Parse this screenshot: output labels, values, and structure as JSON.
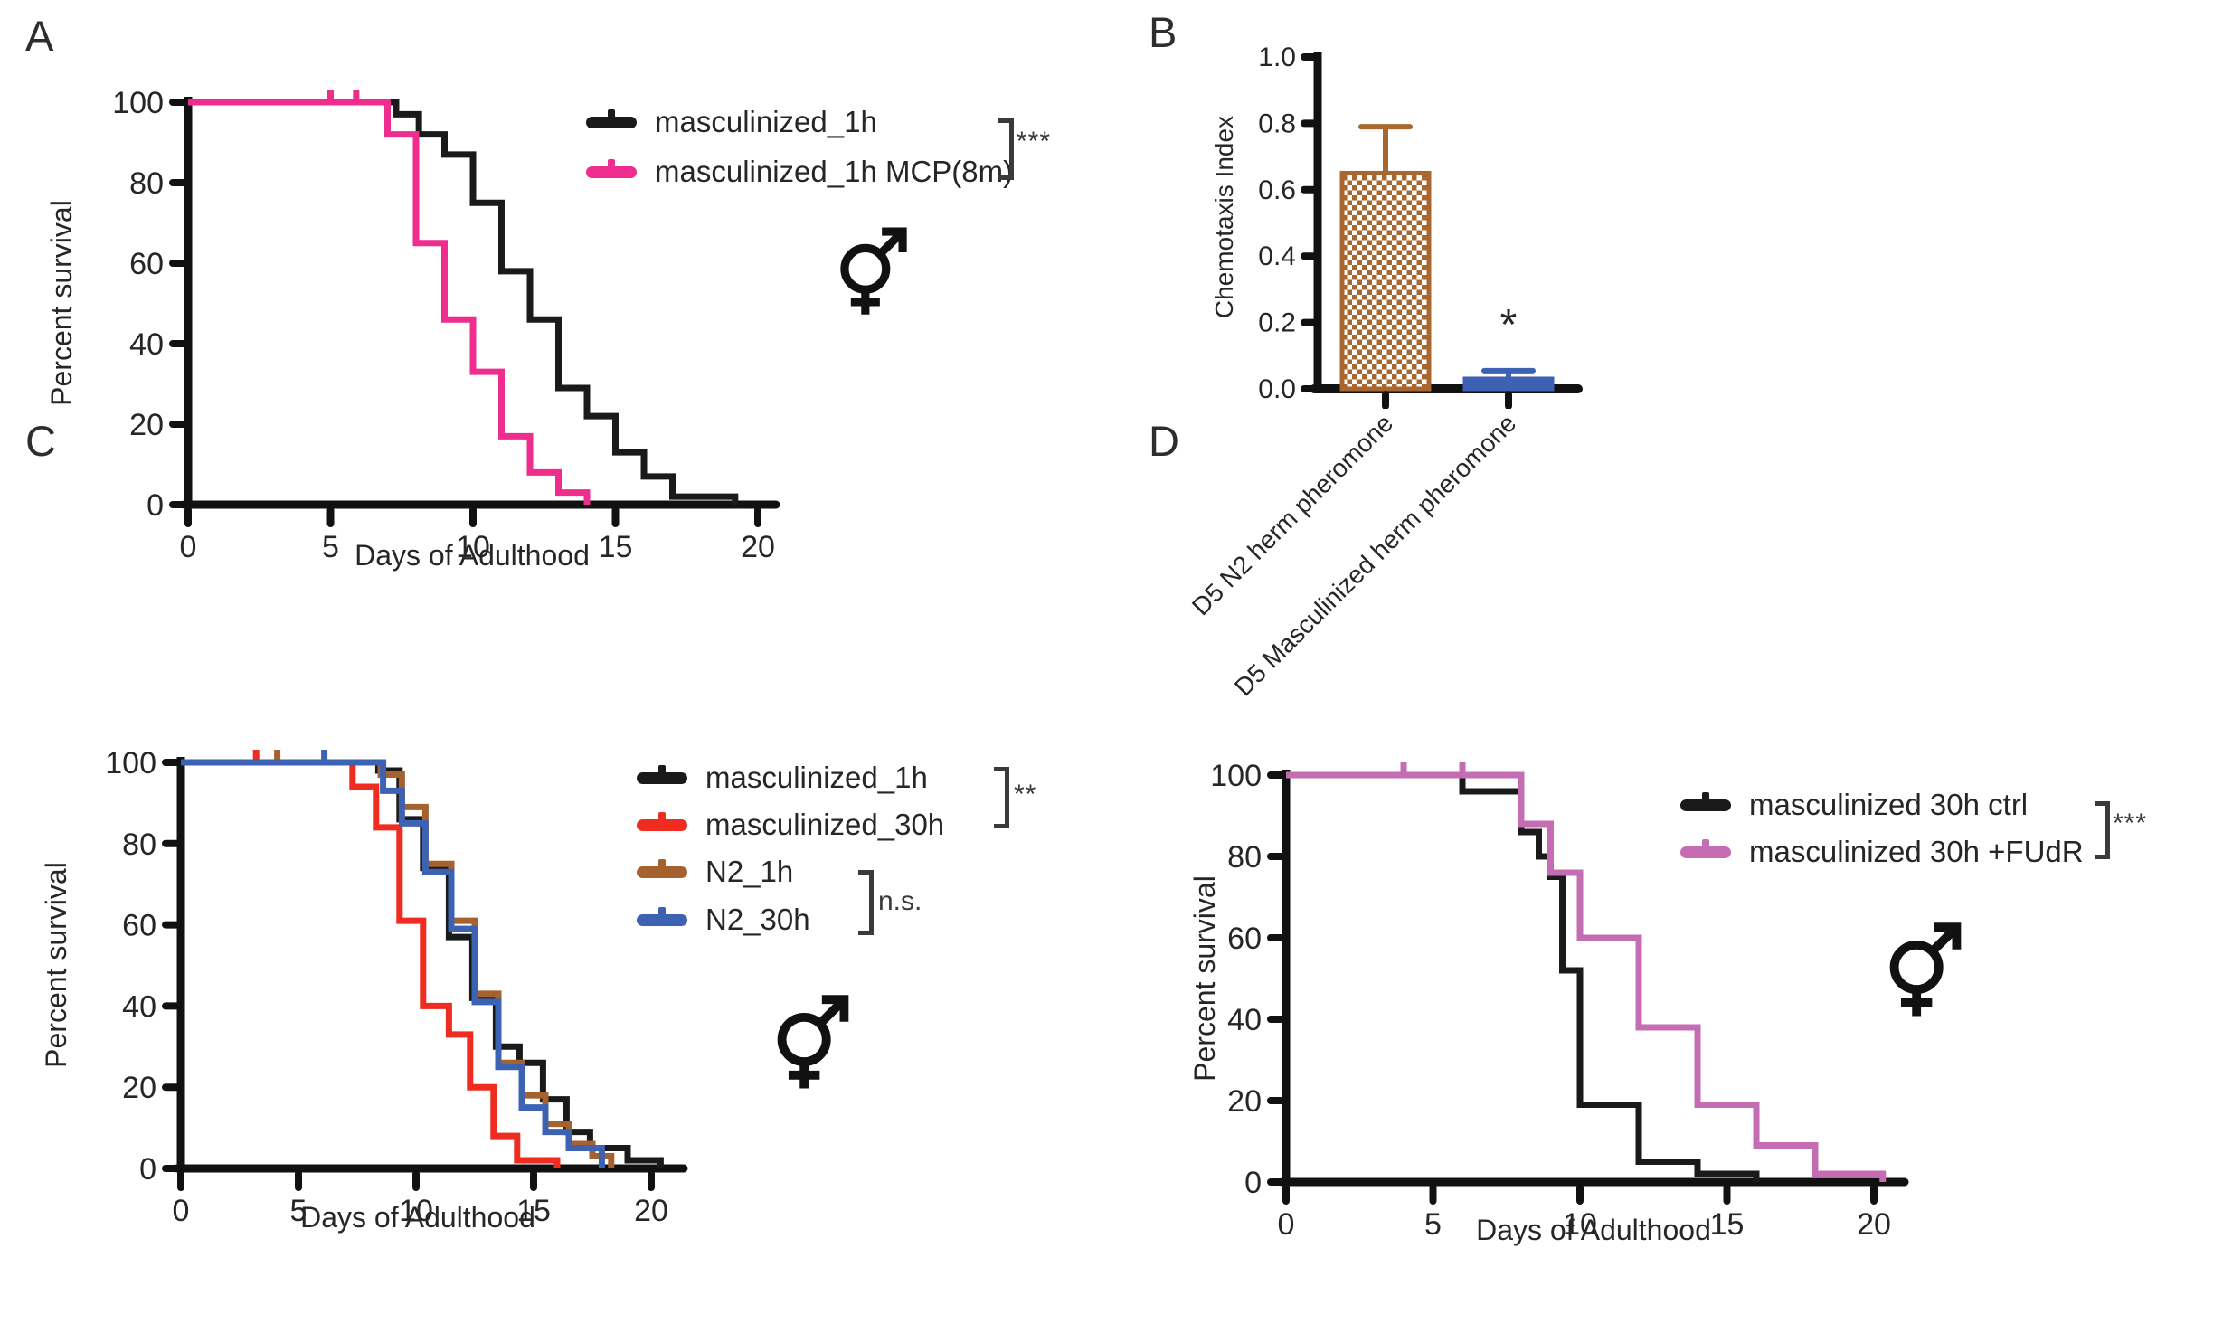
{
  "chart_data": [
    {
      "panel": "A",
      "type": "line",
      "subtype": "kaplan-meier-survival",
      "xlabel": "Days of Adulthood",
      "ylabel": "Percent survival",
      "xlim": [
        0,
        20
      ],
      "ylim": [
        0,
        100
      ],
      "xticks": [
        0,
        5,
        10,
        15,
        20
      ],
      "yticks": [
        0,
        20,
        40,
        60,
        80,
        100
      ],
      "grid": false,
      "legend_position": "upper-right",
      "significance": "***",
      "sex_annotation": "combined male-female (hermaphrodite) symbol",
      "series": [
        {
          "name": "masculinized_1h",
          "color": "#1a1a1a",
          "points": [
            [
              0,
              100
            ],
            [
              7.3,
              97
            ],
            [
              8.1,
              92
            ],
            [
              9,
              87
            ],
            [
              10,
              75
            ],
            [
              11,
              58
            ],
            [
              12,
              46
            ],
            [
              13,
              29
            ],
            [
              14,
              22
            ],
            [
              15,
              13
            ],
            [
              16,
              7
            ],
            [
              17,
              2
            ],
            [
              19.2,
              0
            ]
          ],
          "censor_ticks": []
        },
        {
          "name": "masculinized_1h MCP(8m)",
          "color": "#ee2d8e",
          "points": [
            [
              0,
              100
            ],
            [
              7,
              92
            ],
            [
              8,
              65
            ],
            [
              9,
              46
            ],
            [
              10,
              33
            ],
            [
              11,
              17
            ],
            [
              12,
              8
            ],
            [
              13,
              3
            ],
            [
              14,
              0
            ]
          ],
          "censor_ticks": [
            [
              5,
              100
            ],
            [
              5.9,
              100
            ]
          ]
        }
      ]
    },
    {
      "panel": "B",
      "type": "bar",
      "ylabel": "Chemotaxis Index",
      "ylim": [
        0,
        1.0
      ],
      "yticks": [
        0,
        0.2,
        0.4,
        0.6,
        0.8,
        1.0
      ],
      "ytick_labels": [
        "0.0",
        "0.2",
        "0.4",
        "0.6",
        "0.8",
        "1.0"
      ],
      "categories": [
        "D5 N2 herm pheromone",
        "D5 Masculinized herm pheromone"
      ],
      "values": [
        0.65,
        0.03
      ],
      "error_top": [
        0.79,
        0.055
      ],
      "bar_colors": [
        "#a8672f",
        "#3d62b4"
      ],
      "bar_fill_styles": [
        "checkerboard",
        "solid"
      ],
      "significance_labels": [
        "",
        "*"
      ]
    },
    {
      "panel": "C",
      "type": "line",
      "subtype": "kaplan-meier-survival",
      "xlabel": "Days of Adulthood",
      "ylabel": "Percent survival",
      "xlim": [
        0,
        21
      ],
      "ylim": [
        0,
        100
      ],
      "xticks": [
        0,
        5,
        10,
        15,
        20
      ],
      "yticks": [
        0,
        20,
        40,
        60,
        80,
        100
      ],
      "grid": false,
      "legend_position": "upper-right",
      "significance": [
        {
          "text": "**",
          "applies_to": [
            "masculinized_1h",
            "masculinized_30h"
          ]
        },
        {
          "text": "n.s.",
          "applies_to": [
            "N2_1h",
            "N2_30h"
          ]
        }
      ],
      "sex_annotation": "combined male-female (hermaphrodite) symbol",
      "series": [
        {
          "name": "masculinized_1h",
          "color": "#1a1a1a",
          "points": [
            [
              0,
              100
            ],
            [
              8.4,
              98
            ],
            [
              9.3,
              86
            ],
            [
              10.3,
              74
            ],
            [
              11.4,
              57
            ],
            [
              12.4,
              42
            ],
            [
              13.4,
              30
            ],
            [
              14.4,
              26
            ],
            [
              15.4,
              17
            ],
            [
              16.4,
              9
            ],
            [
              17.4,
              5
            ],
            [
              19,
              2
            ],
            [
              20.4,
              0
            ]
          ],
          "censor_ticks": []
        },
        {
          "name": "masculinized_30h",
          "color": "#f02b1f",
          "points": [
            [
              0,
              100
            ],
            [
              7.3,
              94
            ],
            [
              8.3,
              84
            ],
            [
              9.3,
              61
            ],
            [
              10.3,
              40
            ],
            [
              11.4,
              33
            ],
            [
              12.3,
              20
            ],
            [
              13.3,
              8
            ],
            [
              14.3,
              2
            ],
            [
              16,
              0
            ]
          ],
          "censor_ticks": [
            [
              3.2,
              100
            ]
          ]
        },
        {
          "name": "N2_1h",
          "color": "#a5622f",
          "points": [
            [
              0,
              100
            ],
            [
              8.5,
              97
            ],
            [
              9.4,
              89
            ],
            [
              10.4,
              75
            ],
            [
              11.5,
              61
            ],
            [
              12.5,
              43
            ],
            [
              13.5,
              26
            ],
            [
              14.5,
              18
            ],
            [
              15.5,
              11
            ],
            [
              16.5,
              6
            ],
            [
              17.5,
              3
            ],
            [
              18.3,
              0
            ]
          ],
          "censor_ticks": [
            [
              4.1,
              100
            ]
          ]
        },
        {
          "name": "N2_30h",
          "color": "#3e62b2",
          "points": [
            [
              0,
              100
            ],
            [
              8.6,
              93
            ],
            [
              9.4,
              85
            ],
            [
              10.4,
              73
            ],
            [
              11.5,
              59
            ],
            [
              12.5,
              41
            ],
            [
              13.5,
              25
            ],
            [
              14.5,
              15
            ],
            [
              15.5,
              9
            ],
            [
              16.5,
              5
            ],
            [
              17.9,
              0
            ]
          ],
          "censor_ticks": [
            [
              6.1,
              100
            ]
          ]
        }
      ]
    },
    {
      "panel": "D",
      "type": "line",
      "subtype": "kaplan-meier-survival",
      "xlabel": "Days of Adulthood",
      "ylabel": "Percent survival",
      "xlim": [
        0,
        21
      ],
      "ylim": [
        0,
        100
      ],
      "xticks": [
        0,
        5,
        10,
        15,
        20
      ],
      "yticks": [
        0,
        20,
        40,
        60,
        80,
        100
      ],
      "grid": false,
      "legend_position": "upper-right",
      "significance": "***",
      "sex_annotation": "combined male-female (hermaphrodite) symbol",
      "series": [
        {
          "name": "masculinized 30h ctrl",
          "color": "#1a1a1a",
          "points": [
            [
              0,
              100
            ],
            [
              6,
              96
            ],
            [
              8,
              86
            ],
            [
              8.6,
              80
            ],
            [
              9,
              75
            ],
            [
              9.4,
              52
            ],
            [
              10,
              19
            ],
            [
              12,
              5
            ],
            [
              14,
              2
            ],
            [
              16,
              0
            ]
          ],
          "censor_ticks": []
        },
        {
          "name": "masculinized 30h +FUdR",
          "color": "#c56db3",
          "points": [
            [
              0,
              100
            ],
            [
              8,
              88
            ],
            [
              9,
              76
            ],
            [
              10,
              60
            ],
            [
              12,
              38
            ],
            [
              14,
              19
            ],
            [
              16,
              9
            ],
            [
              18,
              2
            ],
            [
              20.3,
              0
            ]
          ],
          "censor_ticks": [
            [
              4,
              100
            ],
            [
              6,
              100
            ]
          ]
        }
      ]
    }
  ]
}
